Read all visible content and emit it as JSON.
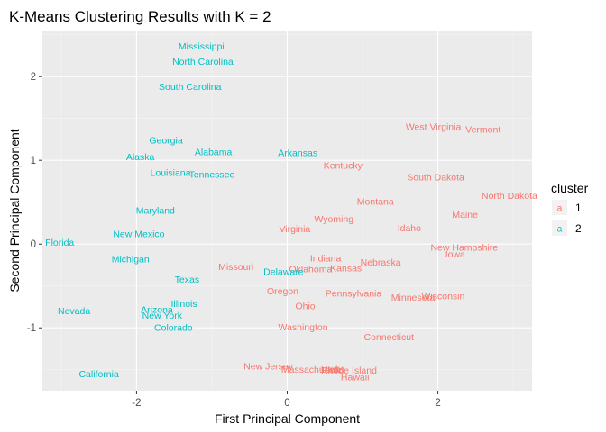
{
  "chart_data": {
    "type": "scatter",
    "title": "K-Means Clustering Results with K = 2",
    "xlabel": "First Principal Component",
    "ylabel": "Second Principal Component",
    "xlim": [
      -3.25,
      3.25
    ],
    "ylim": [
      -1.75,
      2.55
    ],
    "xticks": [
      -2,
      0,
      2
    ],
    "yticks": [
      -1,
      0,
      1,
      2
    ],
    "grid": true,
    "background": "#ebebeb",
    "legend": {
      "title": "cluster",
      "placement": "right",
      "glyph": "a",
      "entries": [
        {
          "label": "1",
          "color": "#f8766d"
        },
        {
          "label": "2",
          "color": "#00bfc4"
        }
      ]
    },
    "series": [
      {
        "name": "1",
        "color": "#f8766d",
        "points": [
          {
            "label": "West Virginia",
            "x": 1.94,
            "y": 1.4
          },
          {
            "label": "Vermont",
            "x": 2.6,
            "y": 1.37
          },
          {
            "label": "Kentucky",
            "x": 0.74,
            "y": 0.94
          },
          {
            "label": "South Dakota",
            "x": 1.97,
            "y": 0.8
          },
          {
            "label": "North Dakota",
            "x": 2.95,
            "y": 0.58
          },
          {
            "label": "Montana",
            "x": 1.17,
            "y": 0.51
          },
          {
            "label": "Maine",
            "x": 2.36,
            "y": 0.35
          },
          {
            "label": "Wyoming",
            "x": 0.62,
            "y": 0.3
          },
          {
            "label": "Idaho",
            "x": 1.62,
            "y": 0.19
          },
          {
            "label": "Virginia",
            "x": 0.1,
            "y": 0.18
          },
          {
            "label": "New Hampshire",
            "x": 2.35,
            "y": -0.04
          },
          {
            "label": "Iowa",
            "x": 2.23,
            "y": -0.12
          },
          {
            "label": "Indiana",
            "x": 0.51,
            "y": -0.17
          },
          {
            "label": "Nebraska",
            "x": 1.24,
            "y": -0.22
          },
          {
            "label": "Missouri",
            "x": -0.68,
            "y": -0.27
          },
          {
            "label": "Kansas",
            "x": 0.78,
            "y": -0.29
          },
          {
            "label": "Oklahoma",
            "x": 0.31,
            "y": -0.3
          },
          {
            "label": "Oregon",
            "x": -0.06,
            "y": -0.56
          },
          {
            "label": "Pennsylvania",
            "x": 0.88,
            "y": -0.59
          },
          {
            "label": "Minnesota",
            "x": 1.67,
            "y": -0.64
          },
          {
            "label": "Wisconsin",
            "x": 2.07,
            "y": -0.62
          },
          {
            "label": "Ohio",
            "x": 0.24,
            "y": -0.74
          },
          {
            "label": "Washington",
            "x": 0.21,
            "y": -0.99
          },
          {
            "label": "Connecticut",
            "x": 1.35,
            "y": -1.11
          },
          {
            "label": "New Jersey",
            "x": -0.25,
            "y": -1.46
          },
          {
            "label": "Massachusetts",
            "x": 0.34,
            "y": -1.5
          },
          {
            "label": "Utah",
            "x": 0.58,
            "y": -1.5
          },
          {
            "label": "Rhode Island",
            "x": 0.82,
            "y": -1.51
          },
          {
            "label": "Hawaii",
            "x": 0.9,
            "y": -1.59
          }
        ]
      },
      {
        "name": "2",
        "color": "#00bfc4",
        "points": [
          {
            "label": "Mississippi",
            "x": -1.14,
            "y": 2.36
          },
          {
            "label": "North Carolina",
            "x": -1.12,
            "y": 2.18
          },
          {
            "label": "South Carolina",
            "x": -1.29,
            "y": 1.88
          },
          {
            "label": "Georgia",
            "x": -1.61,
            "y": 1.24
          },
          {
            "label": "Alabama",
            "x": -0.98,
            "y": 1.1
          },
          {
            "label": "Arkansas",
            "x": 0.14,
            "y": 1.09
          },
          {
            "label": "Alaska",
            "x": -1.95,
            "y": 1.04
          },
          {
            "label": "Louisiana",
            "x": -1.55,
            "y": 0.85
          },
          {
            "label": "Tennessee",
            "x": -1.0,
            "y": 0.83
          },
          {
            "label": "Maryland",
            "x": -1.75,
            "y": 0.4
          },
          {
            "label": "New Mexico",
            "x": -1.97,
            "y": 0.12
          },
          {
            "label": "Florida",
            "x": -3.02,
            "y": 0.02
          },
          {
            "label": "Michigan",
            "x": -2.08,
            "y": -0.18
          },
          {
            "label": "Delaware",
            "x": -0.05,
            "y": -0.33
          },
          {
            "label": "Texas",
            "x": -1.33,
            "y": -0.42
          },
          {
            "label": "Illinois",
            "x": -1.37,
            "y": -0.71
          },
          {
            "label": "Nevada",
            "x": -2.83,
            "y": -0.8
          },
          {
            "label": "Arizona",
            "x": -1.73,
            "y": -0.78
          },
          {
            "label": "New York",
            "x": -1.66,
            "y": -0.85
          },
          {
            "label": "Colorado",
            "x": -1.51,
            "y": -1.0
          },
          {
            "label": "California",
            "x": -2.5,
            "y": -1.55
          }
        ]
      }
    ]
  }
}
